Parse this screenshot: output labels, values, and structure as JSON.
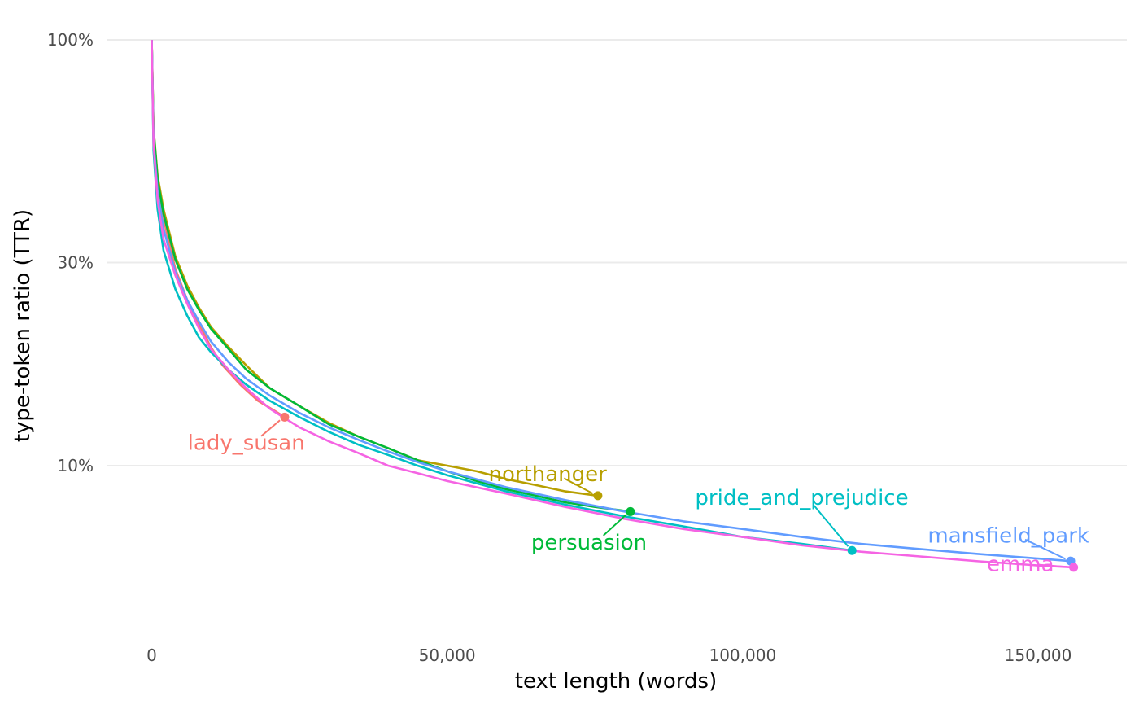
{
  "chart_data": {
    "type": "line",
    "xlabel": "text length (words)",
    "ylabel": "type-token ratio (TTR)",
    "xlim": [
      -7500,
      165000
    ],
    "ylim": [
      0.062,
      1.0
    ],
    "y_scale": "log",
    "grid": "horizontal major lines",
    "x_ticks": [
      {
        "value": 0,
        "label": "0"
      },
      {
        "value": 50000,
        "label": "50,000"
      },
      {
        "value": 100000,
        "label": "100,000"
      },
      {
        "value": 150000,
        "label": "150,000"
      }
    ],
    "y_ticks": [
      {
        "value": 0.1,
        "label": "10%"
      },
      {
        "value": 0.3,
        "label": "30%"
      },
      {
        "value": 1.0,
        "label": "100%"
      }
    ],
    "series": [
      {
        "name": "lady_susan",
        "color": "#F8766D",
        "label_at": [
          16000,
          0.109
        ],
        "points": [
          [
            0,
            1.0
          ],
          [
            300,
            0.6
          ],
          [
            1000,
            0.45
          ],
          [
            2000,
            0.38
          ],
          [
            4000,
            0.29
          ],
          [
            6000,
            0.245
          ],
          [
            8000,
            0.215
          ],
          [
            10000,
            0.19
          ],
          [
            12000,
            0.172
          ],
          [
            15000,
            0.155
          ],
          [
            18000,
            0.142
          ],
          [
            21000,
            0.134
          ],
          [
            22500,
            0.13
          ]
        ]
      },
      {
        "name": "northanger",
        "color": "#B79F00",
        "label_at": [
          67000,
          0.092
        ],
        "points": [
          [
            0,
            1.0
          ],
          [
            300,
            0.62
          ],
          [
            1000,
            0.48
          ],
          [
            2000,
            0.4
          ],
          [
            4000,
            0.31
          ],
          [
            6000,
            0.265
          ],
          [
            8000,
            0.235
          ],
          [
            10000,
            0.212
          ],
          [
            13000,
            0.19
          ],
          [
            16000,
            0.172
          ],
          [
            20000,
            0.152
          ],
          [
            25000,
            0.138
          ],
          [
            30000,
            0.126
          ],
          [
            35000,
            0.117
          ],
          [
            40000,
            0.11
          ],
          [
            45000,
            0.103
          ],
          [
            50000,
            0.1
          ],
          [
            55000,
            0.097
          ],
          [
            60000,
            0.093
          ],
          [
            65000,
            0.09
          ],
          [
            70000,
            0.087
          ],
          [
            75500,
            0.085
          ]
        ]
      },
      {
        "name": "persuasion",
        "color": "#00BA38",
        "label_at": [
          74000,
          0.0635
        ],
        "points": [
          [
            0,
            1.0
          ],
          [
            300,
            0.62
          ],
          [
            1000,
            0.47
          ],
          [
            2000,
            0.39
          ],
          [
            4000,
            0.305
          ],
          [
            6000,
            0.26
          ],
          [
            8000,
            0.232
          ],
          [
            10000,
            0.21
          ],
          [
            13000,
            0.188
          ],
          [
            16000,
            0.168
          ],
          [
            20000,
            0.152
          ],
          [
            25000,
            0.138
          ],
          [
            30000,
            0.125
          ],
          [
            35000,
            0.117
          ],
          [
            40000,
            0.11
          ],
          [
            45000,
            0.103
          ],
          [
            50000,
            0.097
          ],
          [
            55000,
            0.092
          ],
          [
            60000,
            0.088
          ],
          [
            65000,
            0.085
          ],
          [
            70000,
            0.082
          ],
          [
            75000,
            0.08
          ],
          [
            81000,
            0.078
          ]
        ]
      },
      {
        "name": "pride_and_prejudice",
        "color": "#00BFC4",
        "label_at": [
          110000,
          0.081
        ],
        "points": [
          [
            0,
            1.0
          ],
          [
            300,
            0.55
          ],
          [
            1000,
            0.4
          ],
          [
            2000,
            0.32
          ],
          [
            4000,
            0.26
          ],
          [
            6000,
            0.225
          ],
          [
            8000,
            0.2
          ],
          [
            10000,
            0.185
          ],
          [
            13000,
            0.168
          ],
          [
            16000,
            0.155
          ],
          [
            20000,
            0.142
          ],
          [
            25000,
            0.13
          ],
          [
            30000,
            0.12
          ],
          [
            35000,
            0.112
          ],
          [
            40000,
            0.106
          ],
          [
            45000,
            0.1
          ],
          [
            50000,
            0.095
          ],
          [
            60000,
            0.087
          ],
          [
            70000,
            0.081
          ],
          [
            80000,
            0.076
          ],
          [
            90000,
            0.072
          ],
          [
            100000,
            0.068
          ],
          [
            110000,
            0.0655
          ],
          [
            118500,
            0.0632
          ]
        ]
      },
      {
        "name": "mansfield_park",
        "color": "#619CFF",
        "label_at": [
          145000,
          0.066
        ],
        "points": [
          [
            0,
            1.0
          ],
          [
            300,
            0.58
          ],
          [
            1000,
            0.44
          ],
          [
            2000,
            0.36
          ],
          [
            4000,
            0.285
          ],
          [
            6000,
            0.245
          ],
          [
            8000,
            0.218
          ],
          [
            10000,
            0.196
          ],
          [
            13000,
            0.175
          ],
          [
            16000,
            0.16
          ],
          [
            20000,
            0.146
          ],
          [
            25000,
            0.133
          ],
          [
            30000,
            0.123
          ],
          [
            35000,
            0.115
          ],
          [
            40000,
            0.108
          ],
          [
            45000,
            0.102
          ],
          [
            50000,
            0.097
          ],
          [
            60000,
            0.089
          ],
          [
            70000,
            0.083
          ],
          [
            80000,
            0.078
          ],
          [
            90000,
            0.074
          ],
          [
            100000,
            0.071
          ],
          [
            110000,
            0.068
          ],
          [
            120000,
            0.0655
          ],
          [
            130000,
            0.0637
          ],
          [
            140000,
            0.062
          ],
          [
            150000,
            0.0605
          ],
          [
            155500,
            0.0597
          ]
        ]
      },
      {
        "name": "emma",
        "color": "#F564E3",
        "label_at": [
          147000,
          0.0565
        ],
        "points": [
          [
            0,
            1.0
          ],
          [
            300,
            0.57
          ],
          [
            1000,
            0.42
          ],
          [
            2000,
            0.34
          ],
          [
            4000,
            0.28
          ],
          [
            6000,
            0.24
          ],
          [
            8000,
            0.21
          ],
          [
            10000,
            0.188
          ],
          [
            13000,
            0.168
          ],
          [
            16000,
            0.152
          ],
          [
            20000,
            0.136
          ],
          [
            25000,
            0.123
          ],
          [
            30000,
            0.114
          ],
          [
            35000,
            0.107
          ],
          [
            40000,
            0.1
          ],
          [
            45000,
            0.096
          ],
          [
            50000,
            0.092
          ],
          [
            60000,
            0.086
          ],
          [
            70000,
            0.08
          ],
          [
            80000,
            0.075
          ],
          [
            90000,
            0.071
          ],
          [
            100000,
            0.068
          ],
          [
            110000,
            0.065
          ],
          [
            120000,
            0.0628
          ],
          [
            130000,
            0.0612
          ],
          [
            140000,
            0.0596
          ],
          [
            150000,
            0.0583
          ],
          [
            156000,
            0.0577
          ]
        ]
      }
    ]
  }
}
